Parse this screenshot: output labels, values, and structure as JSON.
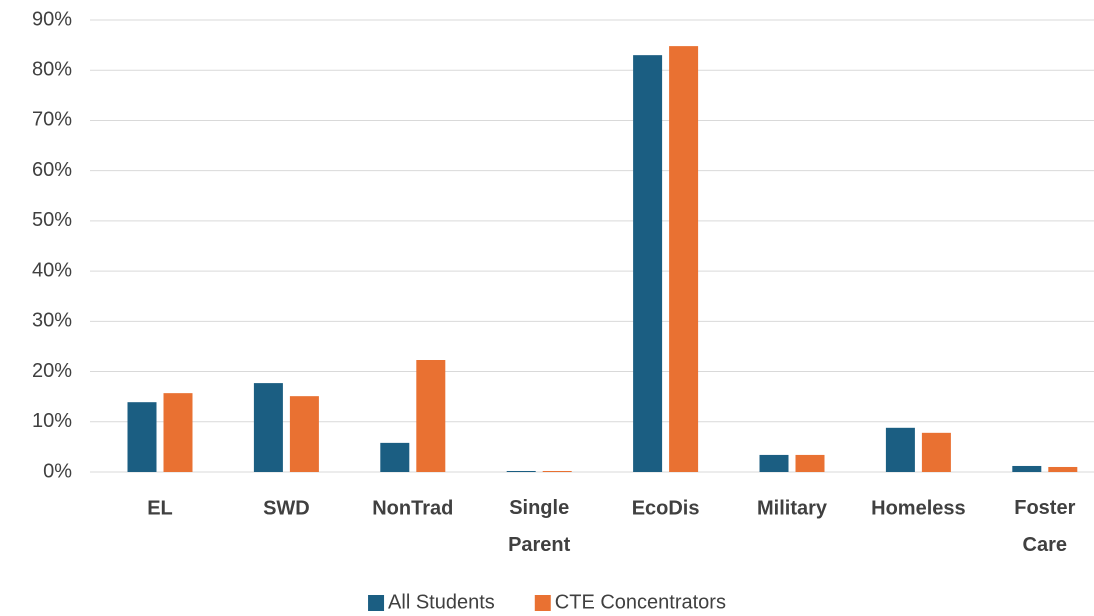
{
  "chart_data": {
    "type": "bar",
    "categories": [
      "EL",
      "SWD",
      "NonTrad",
      "Single Parent",
      "EcoDis",
      "Military",
      "Homeless",
      "Foster Care"
    ],
    "series": [
      {
        "name": "All Students",
        "color": "#1b5e82",
        "values": [
          13.9,
          17.7,
          5.8,
          0.2,
          83.0,
          3.4,
          8.8,
          1.2
        ]
      },
      {
        "name": "CTE Concentrators",
        "color": "#e97132",
        "values": [
          15.7,
          15.1,
          22.3,
          0.2,
          84.8,
          3.4,
          7.8,
          1.0
        ]
      }
    ],
    "ylim": [
      0,
      90
    ],
    "yticks": [
      {
        "value": 0,
        "label": "0%"
      },
      {
        "value": 10,
        "label": "10%"
      },
      {
        "value": 20,
        "label": "20%"
      },
      {
        "value": 30,
        "label": "30%"
      },
      {
        "value": 40,
        "label": "40%"
      },
      {
        "value": 50,
        "label": "50%"
      },
      {
        "value": 60,
        "label": "60%"
      },
      {
        "value": 70,
        "label": "70%"
      },
      {
        "value": 80,
        "label": "80%"
      },
      {
        "value": 90,
        "label": "90%"
      }
    ],
    "grid": true,
    "legend": "bottom"
  }
}
